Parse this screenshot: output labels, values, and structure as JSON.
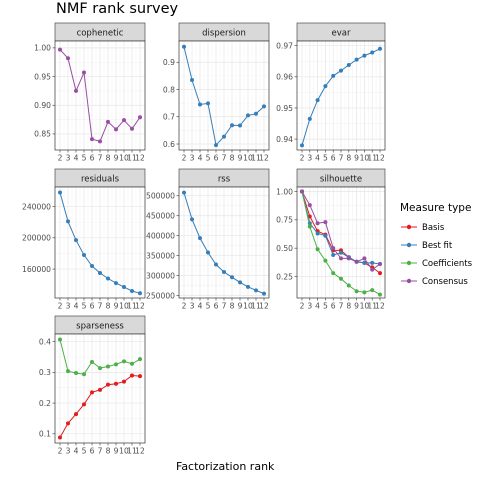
{
  "title": "NMF rank survey",
  "xlabel": "Factorization rank",
  "legend": {
    "title": "Measure type",
    "position": "right",
    "entries": [
      {
        "name": "Basis",
        "color": "#e41a1c"
      },
      {
        "name": "Best fit",
        "color": "#377eb8"
      },
      {
        "name": "Coefficients",
        "color": "#4daf4a"
      },
      {
        "name": "Consensus",
        "color": "#984ea3"
      }
    ]
  },
  "chart_data": [
    {
      "type": "line",
      "title": "cophenetic",
      "grid": true,
      "x": [
        2,
        3,
        4,
        5,
        6,
        7,
        8,
        9,
        10,
        11,
        12
      ],
      "xlim": [
        2,
        12
      ],
      "ylim": [
        0.822,
        1.012
      ],
      "yticks": [
        {
          "v": 0.85,
          "label": "0.85"
        },
        {
          "v": 0.9,
          "label": "0.90"
        },
        {
          "v": 0.95,
          "label": "0.95"
        },
        {
          "v": 1.0,
          "label": "1.00"
        }
      ],
      "series": [
        {
          "name": "Consensus",
          "color": "#984ea3",
          "values": [
            0.997,
            0.982,
            0.925,
            0.957,
            0.841,
            0.837,
            0.871,
            0.858,
            0.874,
            0.859,
            0.879
          ]
        }
      ]
    },
    {
      "type": "line",
      "title": "dispersion",
      "grid": true,
      "x": [
        2,
        3,
        4,
        5,
        6,
        7,
        8,
        9,
        10,
        11,
        12
      ],
      "xlim": [
        2,
        12
      ],
      "ylim": [
        0.578,
        0.978
      ],
      "yticks": [
        {
          "v": 0.6,
          "label": "0.6"
        },
        {
          "v": 0.7,
          "label": "0.7"
        },
        {
          "v": 0.8,
          "label": "0.8"
        },
        {
          "v": 0.9,
          "label": "0.9"
        }
      ],
      "series": [
        {
          "name": "Best fit",
          "color": "#377eb8",
          "values": [
            0.957,
            0.835,
            0.745,
            0.749,
            0.596,
            0.627,
            0.669,
            0.668,
            0.705,
            0.711,
            0.738
          ]
        }
      ]
    },
    {
      "type": "line",
      "title": "evar",
      "grid": true,
      "x": [
        2,
        3,
        4,
        5,
        6,
        7,
        8,
        9,
        10,
        11,
        12
      ],
      "xlim": [
        2,
        12
      ],
      "ylim": [
        0.9365,
        0.9715
      ],
      "yticks": [
        {
          "v": 0.94,
          "label": "0.94"
        },
        {
          "v": 0.95,
          "label": "0.95"
        },
        {
          "v": 0.96,
          "label": "0.96"
        },
        {
          "v": 0.97,
          "label": "0.97"
        }
      ],
      "series": [
        {
          "name": "Best fit",
          "color": "#377eb8",
          "values": [
            0.938,
            0.9465,
            0.9525,
            0.957,
            0.9603,
            0.962,
            0.9638,
            0.9655,
            0.9668,
            0.9678,
            0.969
          ]
        }
      ]
    },
    {
      "type": "line",
      "title": "residuals",
      "grid": true,
      "x": [
        2,
        3,
        4,
        5,
        6,
        7,
        8,
        9,
        10,
        11,
        12
      ],
      "xlim": [
        2,
        12
      ],
      "ylim": [
        123000,
        265000
      ],
      "yticks": [
        {
          "v": 160000,
          "label": "160000"
        },
        {
          "v": 200000,
          "label": "200000"
        },
        {
          "v": 240000,
          "label": "240000"
        }
      ],
      "series": [
        {
          "name": "Best fit",
          "color": "#377eb8",
          "values": [
            258000,
            221000,
            197000,
            178000,
            164000,
            155000,
            148000,
            142000,
            137000,
            132000,
            129000
          ]
        }
      ]
    },
    {
      "type": "line",
      "title": "rss",
      "grid": true,
      "x": [
        2,
        3,
        4,
        5,
        6,
        7,
        8,
        9,
        10,
        11,
        12
      ],
      "xlim": [
        2,
        12
      ],
      "ylim": [
        244000,
        522000
      ],
      "yticks": [
        {
          "v": 250000,
          "label": "250000"
        },
        {
          "v": 300000,
          "label": "300000"
        },
        {
          "v": 350000,
          "label": "350000"
        },
        {
          "v": 400000,
          "label": "400000"
        },
        {
          "v": 450000,
          "label": "450000"
        },
        {
          "v": 500000,
          "label": "500000"
        }
      ],
      "series": [
        {
          "name": "Best fit",
          "color": "#377eb8",
          "values": [
            508000,
            441000,
            394000,
            358000,
            328000,
            309000,
            296000,
            283000,
            272000,
            263000,
            255000
          ]
        }
      ]
    },
    {
      "type": "line",
      "title": "silhouette",
      "grid": true,
      "x": [
        2,
        3,
        4,
        5,
        6,
        7,
        8,
        9,
        10,
        11,
        12
      ],
      "xlim": [
        2,
        12
      ],
      "ylim": [
        0.06,
        1.04
      ],
      "yticks": [
        {
          "v": 0.25,
          "label": "0.25"
        },
        {
          "v": 0.5,
          "label": "0.50"
        },
        {
          "v": 0.75,
          "label": "0.75"
        },
        {
          "v": 1.0,
          "label": "1.00"
        }
      ],
      "series": [
        {
          "name": "Basis",
          "color": "#e41a1c",
          "values": [
            1.0,
            0.78,
            0.65,
            0.62,
            0.48,
            0.48,
            0.42,
            0.38,
            0.37,
            0.33,
            0.28
          ]
        },
        {
          "name": "Best fit",
          "color": "#377eb8",
          "values": [
            1.0,
            0.72,
            0.63,
            0.61,
            0.44,
            0.46,
            0.42,
            0.38,
            0.37,
            0.37,
            0.36
          ]
        },
        {
          "name": "Coefficients",
          "color": "#4daf4a",
          "values": [
            1.0,
            0.69,
            0.49,
            0.39,
            0.28,
            0.23,
            0.17,
            0.12,
            0.11,
            0.13,
            0.09
          ]
        },
        {
          "name": "Consensus",
          "color": "#984ea3",
          "values": [
            1.0,
            0.88,
            0.72,
            0.73,
            0.5,
            0.41,
            0.41,
            0.38,
            0.41,
            0.31,
            0.36
          ]
        }
      ]
    },
    {
      "type": "line",
      "title": "sparseness",
      "grid": true,
      "x": [
        2,
        3,
        4,
        5,
        6,
        7,
        8,
        9,
        10,
        11,
        12
      ],
      "xlim": [
        2,
        12
      ],
      "ylim": [
        0.07,
        0.425
      ],
      "yticks": [
        {
          "v": 0.1,
          "label": "0.1"
        },
        {
          "v": 0.2,
          "label": "0.2"
        },
        {
          "v": 0.3,
          "label": "0.3"
        },
        {
          "v": 0.4,
          "label": "0.4"
        }
      ],
      "series": [
        {
          "name": "Basis",
          "color": "#e41a1c",
          "values": [
            0.088,
            0.134,
            0.164,
            0.196,
            0.235,
            0.243,
            0.26,
            0.263,
            0.27,
            0.29,
            0.288
          ]
        },
        {
          "name": "Coefficients",
          "color": "#4daf4a",
          "values": [
            0.407,
            0.304,
            0.298,
            0.294,
            0.334,
            0.314,
            0.319,
            0.326,
            0.336,
            0.328,
            0.343
          ]
        }
      ]
    }
  ]
}
